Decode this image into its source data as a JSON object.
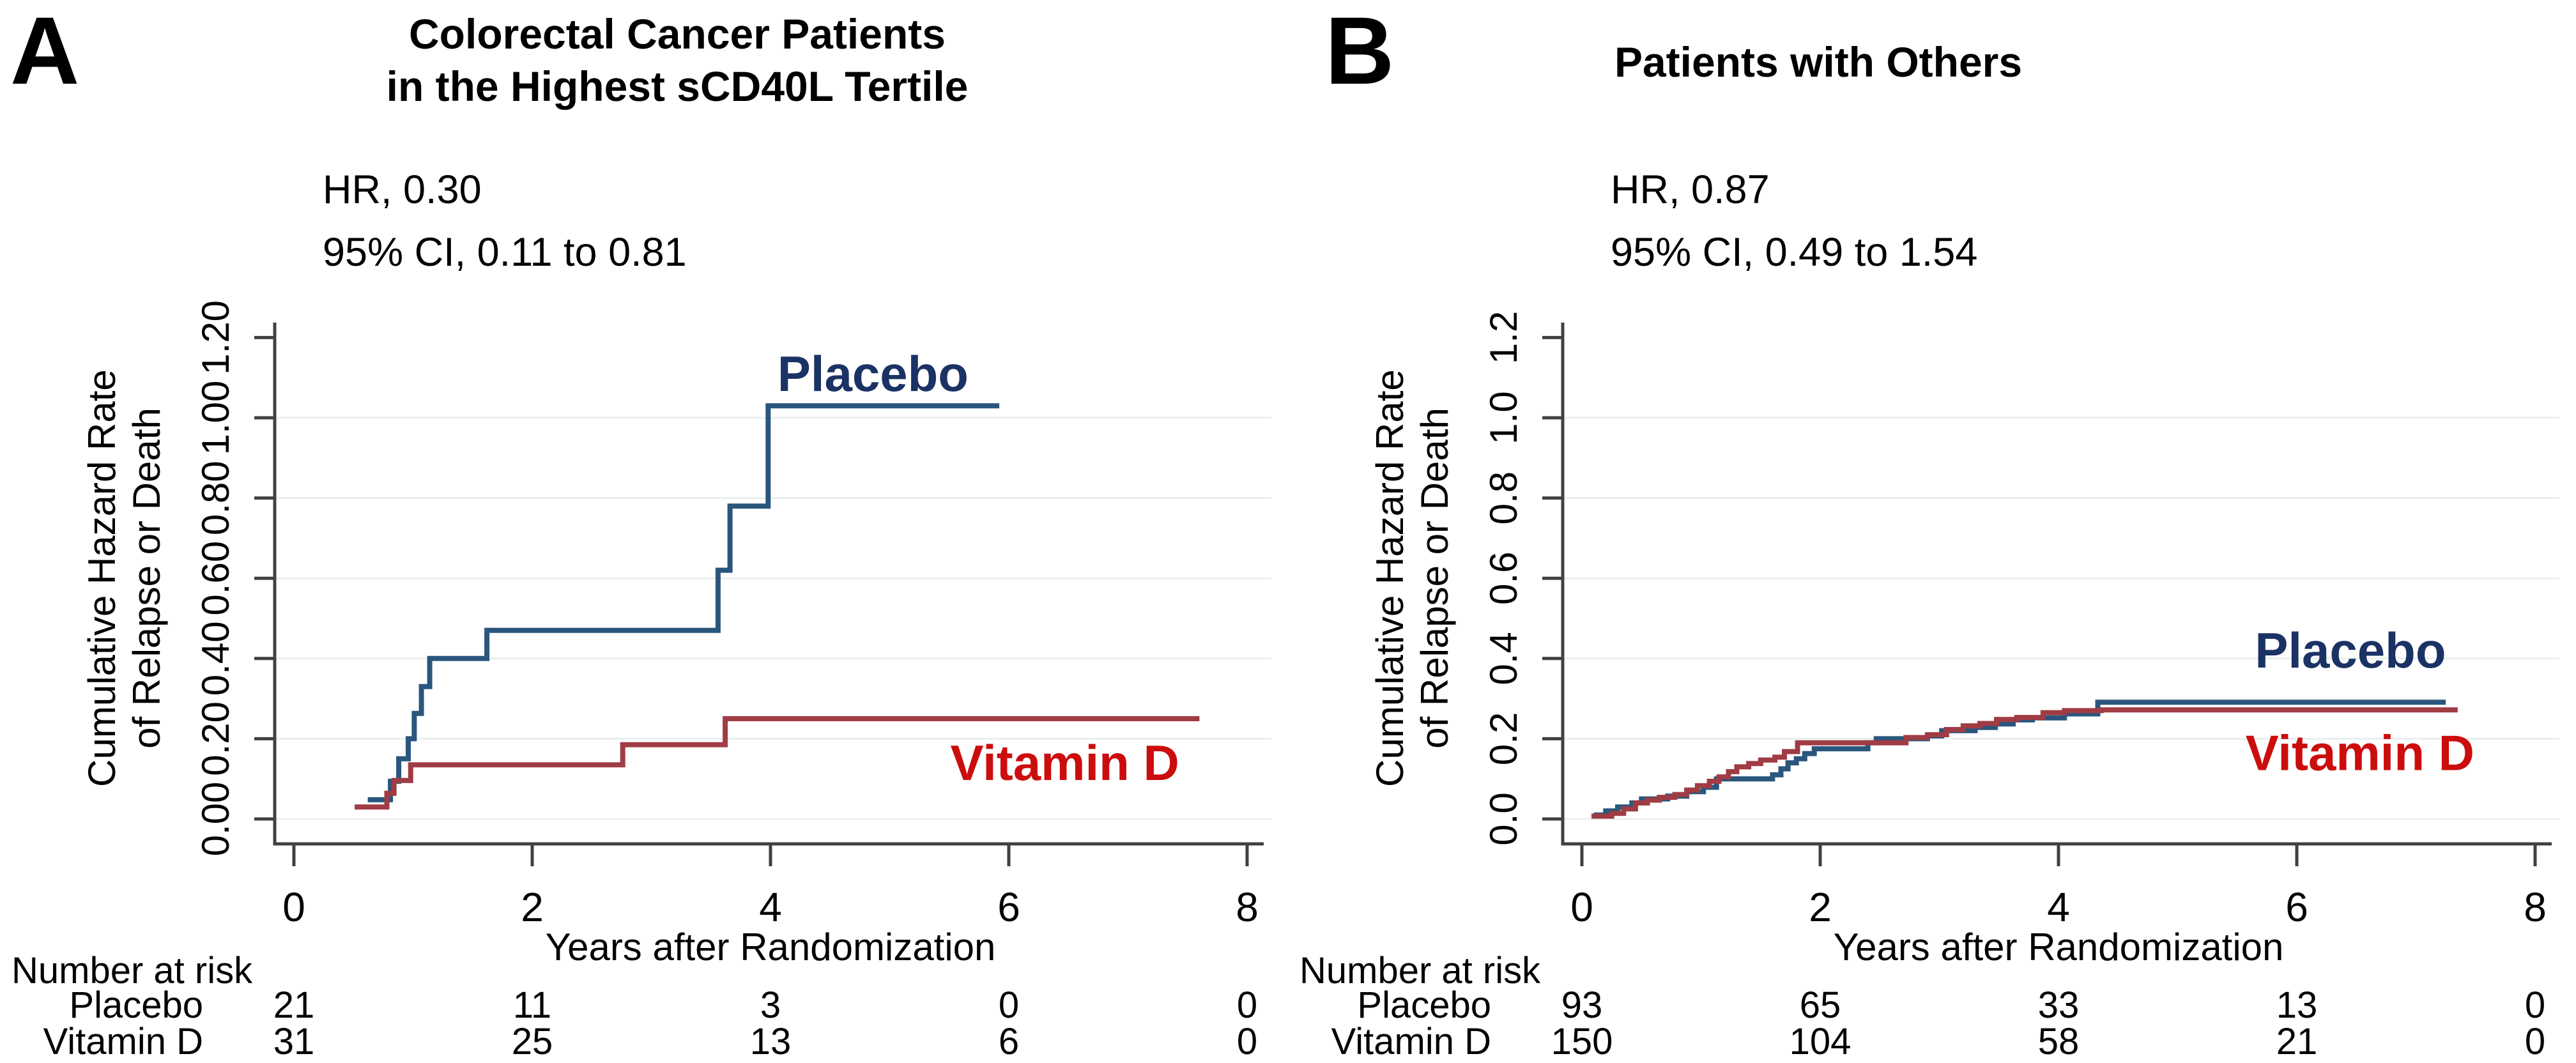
{
  "figure_type": "Kaplan-Meier style cumulative hazard curves, two panels",
  "colors": {
    "placebo_curve": "#2a567d",
    "placebo_label": "#1b3264",
    "vitamin_d_curve": "#a03c44",
    "vitamin_d_label": "#cc0d0d",
    "grid": "#e8f1ef",
    "axis": "#404040",
    "text": "#000000",
    "background": "#ffffff"
  },
  "chart_data": [
    {
      "panel": "A",
      "type": "line",
      "subtype": "step-cumulative-hazard",
      "title_lines": [
        "Colorectal Cancer Patients",
        "in the Highest sCD40L Tertile"
      ],
      "hr_line1": "HR, 0.30",
      "hr_line2": "95% CI, 0.11 to 0.81",
      "ylabel_line1": "Cumulative Hazard Rate",
      "ylabel_line2": "of Relapse or Death",
      "xlabel": "Years after Randomization",
      "xlim": [
        0,
        8
      ],
      "ylim": [
        0,
        1.2
      ],
      "x_ticks": [
        0,
        2,
        4,
        6,
        8
      ],
      "y_tick_values": [
        0,
        0.2,
        0.4,
        0.6,
        0.8,
        1.0,
        1.2
      ],
      "y_tick_labels": [
        "0.00",
        "0.20",
        "0.40",
        "0.60",
        "0.80",
        "1.00",
        "1.20"
      ],
      "grid_values": [
        0,
        0.2,
        0.4,
        0.6,
        0.8,
        1.0
      ],
      "series": [
        {
          "name": "Placebo",
          "color_key": "placebo",
          "label_x": 4.86,
          "label_y": 1.1,
          "start": [
            0.62,
            0.048
          ],
          "steps": [
            [
              0.81,
              0.094
            ],
            [
              0.88,
              0.15
            ],
            [
              0.96,
              0.2
            ],
            [
              1.01,
              0.263
            ],
            [
              1.07,
              0.33
            ],
            [
              1.14,
              0.4
            ],
            [
              1.62,
              0.47
            ],
            [
              3.56,
              0.62
            ],
            [
              3.66,
              0.78
            ],
            [
              3.98,
              1.03
            ]
          ],
          "end_x": 5.92
        },
        {
          "name": "Vitamin D",
          "color_key": "vitamin_d",
          "label_x": 6.47,
          "label_y": 0.13,
          "start": [
            0.51,
            0.03
          ],
          "steps": [
            [
              0.78,
              0.064
            ],
            [
              0.84,
              0.096
            ],
            [
              0.98,
              0.135
            ],
            [
              2.76,
              0.185
            ],
            [
              3.62,
              0.25
            ]
          ],
          "end_x": 7.6
        }
      ],
      "number_at_risk": {
        "heading": "Number at risk",
        "time_points": [
          0,
          2,
          4,
          6,
          8
        ],
        "rows": [
          {
            "label": "Placebo",
            "values": [
              "21",
              "11",
              "3",
              "0",
              "0"
            ]
          },
          {
            "label": "Vitamin D",
            "values": [
              "31",
              "25",
              "13",
              "6",
              "0"
            ]
          }
        ]
      }
    },
    {
      "panel": "B",
      "type": "line",
      "subtype": "step-cumulative-hazard",
      "title_lines": [
        "Patients with Others"
      ],
      "hr_line1": "HR, 0.87",
      "hr_line2": "95% CI, 0.49 to 1.54",
      "ylabel_line1": "Cumulative Hazard Rate",
      "ylabel_line2": "of Relapse or Death",
      "xlabel": "Years after Randomization",
      "xlim": [
        0,
        8
      ],
      "ylim": [
        0,
        1.2
      ],
      "x_ticks": [
        0,
        2,
        4,
        6,
        8
      ],
      "y_tick_values": [
        0,
        0.2,
        0.4,
        0.6,
        0.8,
        1.0,
        1.2
      ],
      "y_tick_labels": [
        "0.0",
        "0.2",
        "0.4",
        "0.6",
        "0.8",
        "1.0",
        "1.2"
      ],
      "grid_values": [
        0,
        0.2,
        0.4,
        0.6,
        0.8,
        1.0
      ],
      "series": [
        {
          "name": "Placebo",
          "color_key": "placebo",
          "label_x": 6.45,
          "label_y": 0.41,
          "start": [
            0.1,
            0.01
          ],
          "steps": [
            [
              0.2,
              0.02
            ],
            [
              0.3,
              0.03
            ],
            [
              0.42,
              0.04
            ],
            [
              0.5,
              0.05
            ],
            [
              0.72,
              0.057
            ],
            [
              0.88,
              0.068
            ],
            [
              1.02,
              0.079
            ],
            [
              1.13,
              0.1
            ],
            [
              1.6,
              0.11
            ],
            [
              1.67,
              0.125
            ],
            [
              1.73,
              0.14
            ],
            [
              1.8,
              0.15
            ],
            [
              1.87,
              0.163
            ],
            [
              1.95,
              0.175
            ],
            [
              2.4,
              0.19
            ],
            [
              2.47,
              0.2
            ],
            [
              2.9,
              0.207
            ],
            [
              3.02,
              0.22
            ],
            [
              3.3,
              0.228
            ],
            [
              3.47,
              0.237
            ],
            [
              3.62,
              0.247
            ],
            [
              3.78,
              0.252
            ],
            [
              4.05,
              0.262
            ],
            [
              4.33,
              0.291
            ]
          ],
          "end_x": 7.25
        },
        {
          "name": "Vitamin D",
          "color_key": "vitamin_d",
          "label_x": 6.53,
          "label_y": 0.155,
          "start": [
            0.08,
            0.007
          ],
          "steps": [
            [
              0.25,
              0.014
            ],
            [
              0.35,
              0.025
            ],
            [
              0.45,
              0.04
            ],
            [
              0.55,
              0.047
            ],
            [
              0.65,
              0.054
            ],
            [
              0.78,
              0.061
            ],
            [
              0.88,
              0.072
            ],
            [
              0.97,
              0.083
            ],
            [
              1.07,
              0.094
            ],
            [
              1.15,
              0.105
            ],
            [
              1.23,
              0.118
            ],
            [
              1.3,
              0.13
            ],
            [
              1.4,
              0.138
            ],
            [
              1.5,
              0.147
            ],
            [
              1.62,
              0.154
            ],
            [
              1.7,
              0.168
            ],
            [
              1.81,
              0.19
            ],
            [
              2.72,
              0.203
            ],
            [
              2.9,
              0.21
            ],
            [
              3.06,
              0.223
            ],
            [
              3.2,
              0.232
            ],
            [
              3.34,
              0.238
            ],
            [
              3.48,
              0.248
            ],
            [
              3.65,
              0.253
            ],
            [
              3.87,
              0.265
            ],
            [
              4.05,
              0.27
            ],
            [
              4.36,
              0.272
            ]
          ],
          "end_x": 7.35
        }
      ],
      "number_at_risk": {
        "heading": "Number at risk",
        "time_points": [
          0,
          2,
          4,
          6,
          8
        ],
        "rows": [
          {
            "label": "Placebo",
            "values": [
              "93",
              "65",
              "33",
              "13",
              "0"
            ]
          },
          {
            "label": "Vitamin D",
            "values": [
              "150",
              "104",
              "58",
              "21",
              "0"
            ]
          }
        ]
      }
    }
  ]
}
